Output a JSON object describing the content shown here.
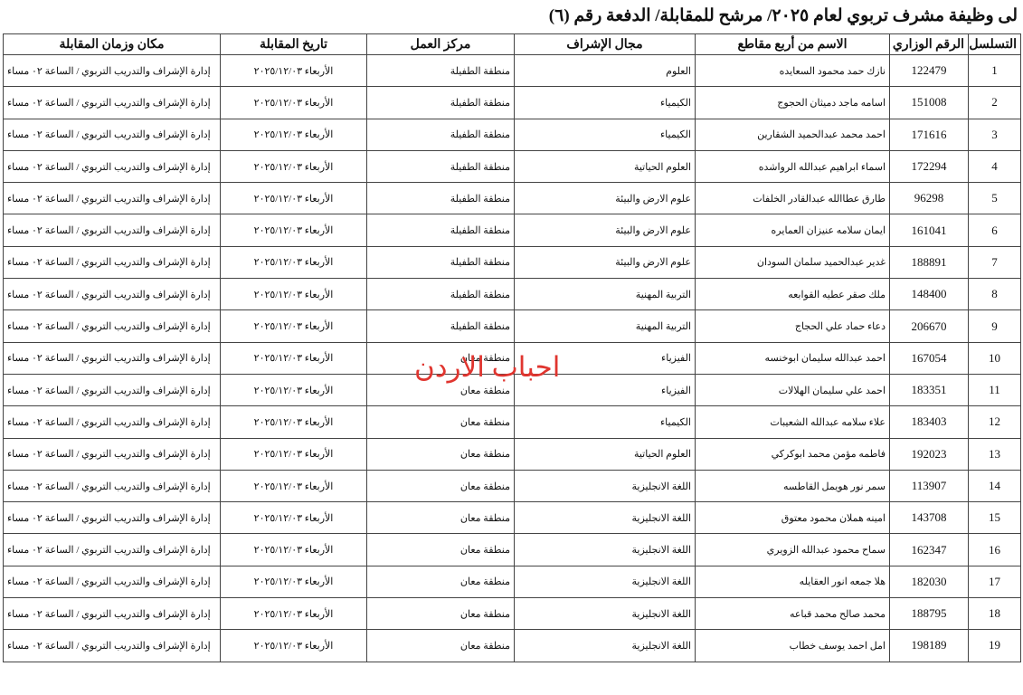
{
  "header": {
    "title": "لى وظيفة مشرف تربوي لعام ٢٠٢٥/ مرشح للمقابلة/ الدفعة رقم (٦)"
  },
  "watermark": "احباب الاردن",
  "table": {
    "columns": [
      "التسلسل",
      "الرقم الوزاري",
      "الاسم من أربع مقاطع",
      "مجال الإشراف",
      "مركز العمل",
      "تاريخ المقابلة",
      "مكان وزمان المقابلة"
    ],
    "rows": [
      [
        1,
        122479,
        "نازك حمد محمود السعايده",
        "العلوم",
        "منطقة الطفيلة",
        "الأربعاء ٢٠٢٥/١٢/٠٣",
        "إدارة الإشراف والتدريب التربوي / الساعة ٠٢ مساء"
      ],
      [
        2,
        151008,
        "اسامه ماجد دميثان الحجوج",
        "الكيمياء",
        "منطقة الطفيلة",
        "الأربعاء ٢٠٢٥/١٢/٠٣",
        "إدارة الإشراف والتدريب التربوي / الساعة ٠٢ مساء"
      ],
      [
        3,
        171616,
        "احمد محمد عبدالحميد الشقارين",
        "الكيمياء",
        "منطقة الطفيلة",
        "الأربعاء ٢٠٢٥/١٢/٠٣",
        "إدارة الإشراف والتدريب التربوي / الساعة ٠٢ مساء"
      ],
      [
        4,
        172294,
        "اسماء ابراهيم عبدالله الرواشده",
        "العلوم الحياتية",
        "منطقة الطفيلة",
        "الأربعاء ٢٠٢٥/١٢/٠٣",
        "إدارة الإشراف والتدريب التربوي / الساعة ٠٢ مساء"
      ],
      [
        5,
        96298,
        "طارق عطاالله عبدالقادر الخلفات",
        "علوم الارض والبيئة",
        "منطقة الطفيلة",
        "الأربعاء ٢٠٢٥/١٢/٠٣",
        "إدارة الإشراف والتدريب التربوي / الساعة ٠٢ مساء"
      ],
      [
        6,
        161041,
        "ايمان سلامه عنيزان العمايره",
        "علوم الارض والبيئة",
        "منطقة الطفيلة",
        "الأربعاء ٢٠٢٥/١٢/٠٣",
        "إدارة الإشراف والتدريب التربوي / الساعة ٠٢ مساء"
      ],
      [
        7,
        188891,
        "غدير عبدالحميد سلمان السودان",
        "علوم الارض والبيئة",
        "منطقة الطفيلة",
        "الأربعاء ٢٠٢٥/١٢/٠٣",
        "إدارة الإشراف والتدريب التربوي / الساعة ٠٢ مساء"
      ],
      [
        8,
        148400,
        "ملك صقر عطيه القوابعه",
        "التربية المهنية",
        "منطقة الطفيلة",
        "الأربعاء ٢٠٢٥/١٢/٠٣",
        "إدارة الإشراف والتدريب التربوي / الساعة ٠٢ مساء"
      ],
      [
        9,
        206670,
        "دعاء حماد علي الحجاج",
        "التربية المهنية",
        "منطقة الطفيلة",
        "الأربعاء ٢٠٢٥/١٢/٠٣",
        "إدارة الإشراف والتدريب التربوي / الساعة ٠٢ مساء"
      ],
      [
        10,
        167054,
        "احمد عبدالله سليمان ابوخنسه",
        "الفيزياء",
        "منطقة معان",
        "الأربعاء ٢٠٢٥/١٢/٠٣",
        "إدارة الإشراف والتدريب التربوي / الساعة ٠٢ مساء"
      ],
      [
        11,
        183351,
        "احمد علي سليمان الهلالات",
        "الفيزياء",
        "منطقة معان",
        "الأربعاء ٢٠٢٥/١٢/٠٣",
        "إدارة الإشراف والتدريب التربوي / الساعة ٠٢ مساء"
      ],
      [
        12,
        183403,
        "علاء سلامه عبدالله الشعيبات",
        "الكيمياء",
        "منطقة معان",
        "الأربعاء ٢٠٢٥/١٢/٠٣",
        "إدارة الإشراف والتدريب التربوي / الساعة ٠٢ مساء"
      ],
      [
        13,
        192023,
        "فاطمه مؤمن محمد ابوكركي",
        "العلوم الحياتية",
        "منطقة معان",
        "الأربعاء ٢٠٢٥/١٢/٠٣",
        "إدارة الإشراف والتدريب التربوي / الساعة ٠٢ مساء"
      ],
      [
        14,
        113907,
        "سمر نور هويمل القاطسه",
        "اللغة الانجليزية",
        "منطقة معان",
        "الأربعاء ٢٠٢٥/١٢/٠٣",
        "إدارة الإشراف والتدريب التربوي / الساعة ٠٢ مساء"
      ],
      [
        15,
        143708,
        "امينه هملان محمود معتوق",
        "اللغة الانجليزية",
        "منطقة معان",
        "الأربعاء ٢٠٢٥/١٢/٠٣",
        "إدارة الإشراف والتدريب التربوي / الساعة ٠٢ مساء"
      ],
      [
        16,
        162347,
        "سماح محمود عبدالله الزويري",
        "اللغة الانجليزية",
        "منطقة معان",
        "الأربعاء ٢٠٢٥/١٢/٠٣",
        "إدارة الإشراف والتدريب التربوي / الساعة ٠٢ مساء"
      ],
      [
        17,
        182030,
        "هلا جمعه انور العقايله",
        "اللغة الانجليزية",
        "منطقة معان",
        "الأربعاء ٢٠٢٥/١٢/٠٣",
        "إدارة الإشراف والتدريب التربوي / الساعة ٠٢ مساء"
      ],
      [
        18,
        188795,
        "محمد صالح محمد قباعه",
        "اللغة الانجليزية",
        "منطقة معان",
        "الأربعاء ٢٠٢٥/١٢/٠٣",
        "إدارة الإشراف والتدريب التربوي / الساعة ٠٢ مساء"
      ],
      [
        19,
        198189,
        "امل احمد يوسف خطاب",
        "اللغة الانجليزية",
        "منطقة معان",
        "الأربعاء ٢٠٢٥/١٢/٠٣",
        "إدارة الإشراف والتدريب التربوي / الساعة ٠٢ مساء"
      ]
    ]
  }
}
